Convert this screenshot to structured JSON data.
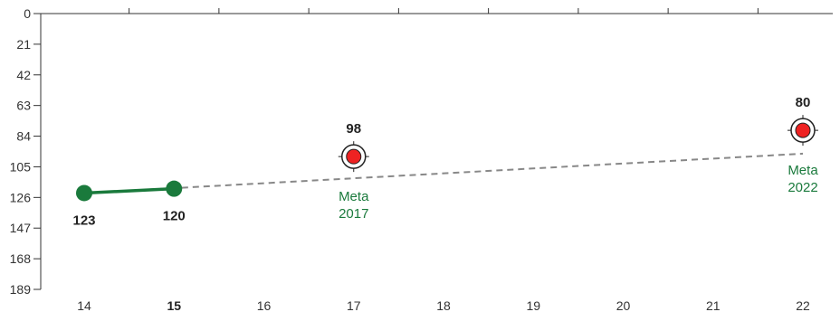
{
  "chart_data": {
    "type": "line",
    "title": "",
    "xlabel": "",
    "ylabel": "",
    "xlim": [
      14,
      22
    ],
    "ylim": [
      0,
      189
    ],
    "y_inverted": true,
    "grid": false,
    "x_ticks": [
      "14",
      "15",
      "16",
      "17",
      "18",
      "19",
      "20",
      "21",
      "22"
    ],
    "x_tick_bold": [
      "15"
    ],
    "y_ticks": [
      "0",
      "21",
      "42",
      "63",
      "84",
      "105",
      "126",
      "147",
      "168",
      "189"
    ],
    "actual": {
      "color": "#1a7a3c",
      "points": [
        {
          "x": 14,
          "y": 123,
          "label": "123"
        },
        {
          "x": 15,
          "y": 120,
          "label": "120"
        }
      ]
    },
    "trend": {
      "color": "#888888",
      "style": "dashed",
      "points": [
        {
          "x": 14,
          "y": 123
        },
        {
          "x": 22,
          "y": 96
        }
      ]
    },
    "targets": {
      "color": "#ee2222",
      "label_color": "#1a7a3c",
      "points": [
        {
          "x": 17,
          "y": 98,
          "label": "98",
          "line1": "Meta",
          "line2": "2017"
        },
        {
          "x": 22,
          "y": 80,
          "label": "80",
          "line1": "Meta",
          "line2": "2022"
        }
      ]
    }
  }
}
